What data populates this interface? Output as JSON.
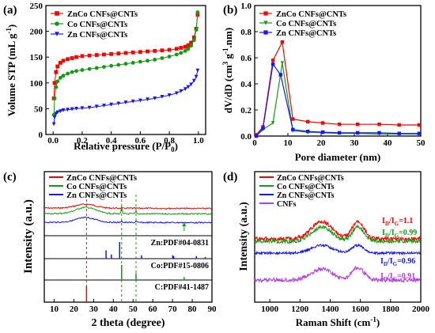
{
  "colors": {
    "red": "#ff0000",
    "green": "#129b12",
    "blue": "#1515ff",
    "violet": "#b13ee8",
    "axis": "#000000"
  },
  "chart_data": [
    {
      "panel_label": "(a)",
      "type": "scatter",
      "xlabel": "Relative pressure (P/P",
      "xlabel_sub": "0",
      "xlabel_end": ")",
      "ylabel": "Volume STP (mL g",
      "ylabel_sup": "-1",
      "ylabel_end": ")",
      "xlim": [
        -0.05,
        1.05
      ],
      "ylim": [
        0,
        250
      ],
      "xticks": [
        "0.0",
        "0.2",
        "0.4",
        "0.6",
        "0.8",
        "1.0"
      ],
      "yticks": [
        "0",
        "50",
        "100",
        "150",
        "200",
        "250"
      ],
      "legend_position": "top-left",
      "series": [
        {
          "name": "ZnCo CNFs@CNTs",
          "color_key": "red",
          "marker": "square",
          "x": [
            0.005,
            0.01,
            0.02,
            0.03,
            0.05,
            0.07,
            0.1,
            0.13,
            0.16,
            0.2,
            0.25,
            0.3,
            0.35,
            0.4,
            0.45,
            0.5,
            0.55,
            0.6,
            0.65,
            0.7,
            0.75,
            0.8,
            0.85,
            0.88,
            0.91,
            0.93,
            0.95,
            0.97,
            0.985,
            0.995
          ],
          "y": [
            70,
            100,
            121,
            132,
            139,
            143,
            146,
            148,
            150,
            152,
            153,
            154,
            155,
            156,
            157,
            158,
            159,
            160,
            161,
            162,
            163,
            164,
            166,
            168,
            170,
            173,
            178,
            188,
            205,
            232
          ]
        },
        {
          "name": "Co CNFs@CNTs",
          "color_key": "green",
          "marker": "circle",
          "x": [
            0.005,
            0.01,
            0.02,
            0.03,
            0.05,
            0.07,
            0.1,
            0.13,
            0.16,
            0.2,
            0.25,
            0.3,
            0.35,
            0.4,
            0.45,
            0.5,
            0.55,
            0.6,
            0.65,
            0.7,
            0.75,
            0.8,
            0.85,
            0.88,
            0.91,
            0.93,
            0.95,
            0.97,
            0.985,
            0.995
          ],
          "y": [
            38,
            70,
            92,
            103,
            110,
            114,
            118,
            121,
            123,
            125,
            127,
            129,
            131,
            133,
            135,
            137,
            139,
            141,
            143,
            145,
            148,
            151,
            155,
            158,
            162,
            166,
            172,
            183,
            203,
            237
          ]
        },
        {
          "name": "Zn CNFs@CNTs",
          "color_key": "blue",
          "marker": "triangle",
          "x": [
            0.005,
            0.01,
            0.02,
            0.03,
            0.05,
            0.07,
            0.1,
            0.13,
            0.16,
            0.2,
            0.25,
            0.3,
            0.35,
            0.4,
            0.45,
            0.5,
            0.55,
            0.6,
            0.65,
            0.7,
            0.75,
            0.8,
            0.85,
            0.88,
            0.91,
            0.93,
            0.95,
            0.97,
            0.985,
            0.995
          ],
          "y": [
            20,
            33,
            40,
            43,
            45,
            47,
            48,
            49,
            50,
            51,
            52,
            54,
            56,
            58,
            60,
            62,
            64,
            66,
            68,
            70,
            73,
            76,
            80,
            84,
            88,
            92,
            97,
            104,
            112,
            124
          ]
        }
      ]
    },
    {
      "panel_label": "(b)",
      "type": "line",
      "xlabel": "Pore diameter (nm)",
      "ylabel": "dV/dD (cm",
      "ylabel_sup": "3",
      "ylabel_end": " g",
      "ylabel_sup2": "-1",
      "ylabel_end2": ".nm)",
      "xlim": [
        0,
        50
      ],
      "ylim": [
        0,
        1.0
      ],
      "xticks": [
        "0",
        "10",
        "20",
        "30",
        "40",
        "50"
      ],
      "yticks": [
        "0.0",
        "0.2",
        "0.4",
        "0.6",
        "0.8",
        "1.0"
      ],
      "legend_position": "top-left",
      "series": [
        {
          "name": "ZnCo CNFs@CNTs",
          "color_key": "red",
          "marker": "square",
          "x": [
            0.5,
            2.5,
            5.5,
            8.3,
            11.5,
            16,
            20.5,
            25.5,
            31,
            37.5,
            43.5,
            49.5
          ],
          "y": [
            0.01,
            0.07,
            0.58,
            0.72,
            0.13,
            0.11,
            0.1,
            0.09,
            0.09,
            0.09,
            0.085,
            0.085
          ]
        },
        {
          "name": "Co CNFs@CNTs",
          "color_key": "green",
          "marker": "triangle",
          "x": [
            0.5,
            2.5,
            5.5,
            8.3,
            11.5,
            16,
            20.5,
            25.5,
            31,
            37.5,
            43.5,
            49.5
          ],
          "y": [
            0.0,
            0.05,
            0.1,
            0.56,
            0.04,
            0.03,
            0.025,
            0.02,
            0.02,
            0.015,
            0.015,
            0.015
          ]
        },
        {
          "name": "Zn CNFs@CNTs",
          "color_key": "blue",
          "marker": "square",
          "x": [
            0.5,
            2.5,
            5.5,
            7.8,
            11.5,
            16,
            20.5,
            25.5,
            31,
            37.5,
            43.5,
            49.5
          ],
          "y": [
            0.0,
            0.06,
            0.55,
            0.47,
            0.05,
            0.035,
            0.03,
            0.025,
            0.025,
            0.025,
            0.02,
            0.02
          ]
        }
      ]
    },
    {
      "panel_label": "(c)",
      "type": "line",
      "xlabel": "2 theta (degree)",
      "ylabel": "Intensity (a.u.)",
      "xlim": [
        5,
        90
      ],
      "xticks": [
        "10",
        "20",
        "30",
        "40",
        "50",
        "60",
        "70",
        "80",
        "90"
      ],
      "legend_position": "top-left",
      "series": [
        {
          "name": "ZnCo CNFs@CNTs",
          "color_key": "red"
        },
        {
          "name": "Co CNFs@CNTs",
          "color_key": "green"
        },
        {
          "name": "Zn CNFs@CNTs",
          "color_key": "blue"
        }
      ],
      "reference_patterns": [
        {
          "label": "Zn:PDF#04-0831",
          "color_key": "blue",
          "peaks_2theta": [
            36.3,
            39.0,
            43.2,
            54.3,
            70.1,
            70.6,
            82.1,
            86.6
          ],
          "rel_intensity": [
            0.5,
            0.25,
            1.0,
            0.2,
            0.2,
            0.15,
            0.15,
            0.1
          ]
        },
        {
          "label": "Co:PDF#15-0806",
          "color_key": "green",
          "peaks_2theta": [
            44.2,
            51.5,
            75.9
          ],
          "rel_intensity": [
            1.0,
            0.45,
            0.2
          ]
        },
        {
          "label": "C:PDF#41-1487",
          "color_key": "red",
          "peaks_2theta": [
            26.4
          ],
          "rel_intensity": [
            1.0
          ]
        }
      ],
      "guide_lines_2theta": [
        26.4,
        44.2,
        51.5
      ]
    },
    {
      "panel_label": "(d)",
      "type": "line",
      "xlabel": "Raman Shift (cm",
      "xlabel_sup": "-1",
      "xlabel_end": ")",
      "ylabel": "Intensity (a.u.)",
      "xlim": [
        900,
        2000
      ],
      "xticks": [
        "1000",
        "1200",
        "1400",
        "1600",
        "1800",
        "2000"
      ],
      "legend_position": "top-left",
      "series": [
        {
          "name": "ZnCo CNFs@CNTs",
          "color_key": "red",
          "ratio_label": "1.1"
        },
        {
          "name": "Co CNFs@CNTs",
          "color_key": "green",
          "ratio_label": "0.99"
        },
        {
          "name": "Zn CNFs@CNTs",
          "color_key": "blue",
          "ratio_label": "0.96"
        },
        {
          "name": "CNFs",
          "color_key": "violet",
          "ratio_label": "0.91"
        }
      ],
      "ratio_prefix": "I",
      "ratio_sub_d": "D",
      "ratio_sub_g": "G",
      "ratio_slash": "/"
    }
  ]
}
